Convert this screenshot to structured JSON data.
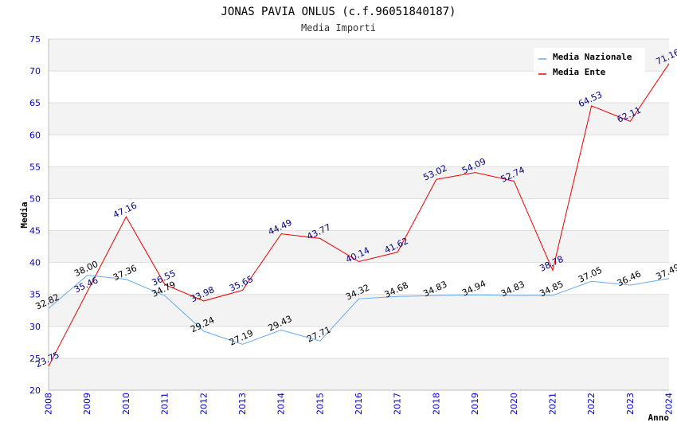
{
  "chart_data": {
    "type": "line",
    "title": "JONAS PAVIA ONLUS (c.f.96051840187)",
    "subtitle": "Media Importi",
    "xlabel": "Anno",
    "ylabel": "Media",
    "ylim": [
      20,
      75
    ],
    "yticks": [
      20,
      25,
      30,
      35,
      40,
      45,
      50,
      55,
      60,
      65,
      70,
      75
    ],
    "categories": [
      "2008",
      "2009",
      "2010",
      "2011",
      "2012",
      "2013",
      "2014",
      "2015",
      "2016",
      "2017",
      "2018",
      "2019",
      "2020",
      "2021",
      "2022",
      "2023",
      "2024"
    ],
    "series": [
      {
        "name": "Media Nazionale",
        "color": "#66aaee",
        "values": [
          32.82,
          38.0,
          37.36,
          34.79,
          29.24,
          27.19,
          29.43,
          27.71,
          34.32,
          34.68,
          34.83,
          34.94,
          34.83,
          34.85,
          37.05,
          36.46,
          37.49
        ],
        "labels": [
          "32.82",
          "38.00",
          "37.36",
          "34.79",
          "29.24",
          "27.19",
          "29.43",
          "27.71",
          "34.32",
          "34.68",
          "34.83",
          "34.94",
          "34.83",
          "34.85",
          "37.05",
          "36.46",
          "37.49"
        ]
      },
      {
        "name": "Media Ente",
        "color": "#ee0000",
        "values": [
          23.75,
          35.46,
          47.16,
          36.55,
          33.98,
          35.65,
          44.49,
          43.77,
          40.14,
          41.62,
          53.02,
          54.09,
          52.74,
          38.78,
          64.53,
          62.11,
          71.16
        ],
        "labels": [
          "23.75",
          "35.46",
          "47.16",
          "36.55",
          "33.98",
          "35.65",
          "44.49",
          "43.77",
          "40.14",
          "41.62",
          "53.02",
          "54.09",
          "52.74",
          "38.78",
          "64.53",
          "62.11",
          "71.16"
        ]
      }
    ],
    "legend_position": "top-right",
    "grid": true
  }
}
